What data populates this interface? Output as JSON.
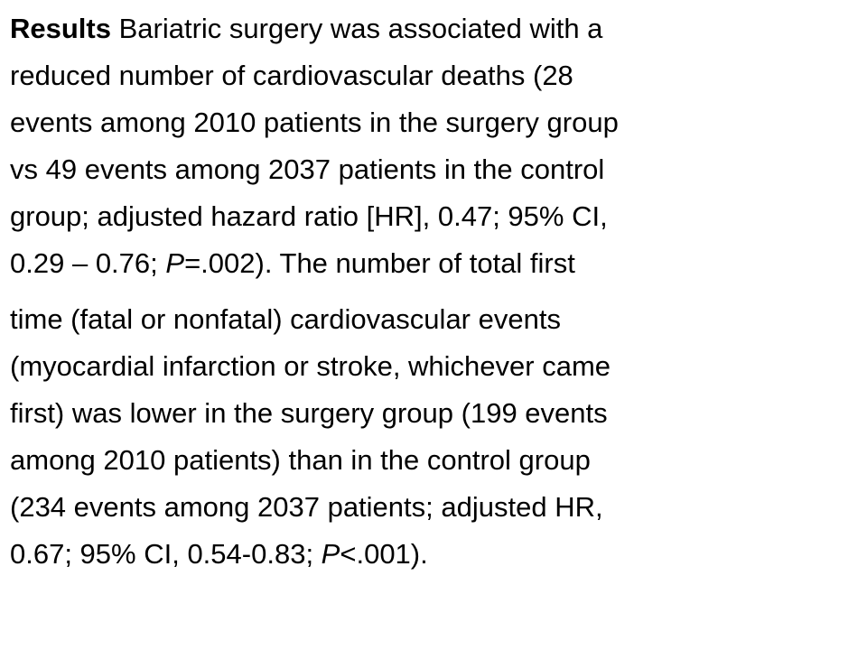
{
  "results": {
    "label": "Results",
    "lines": [
      [
        " Bariatric surgery was associated with a"
      ],
      [
        "reduced number of cardiovascular deaths (28"
      ],
      [
        "events among 2010 patients in the surgery group"
      ],
      [
        "vs 49 events among 2037 patients in the control"
      ],
      [
        "group; adjusted hazard ratio [HR], 0.47; 95% CI,"
      ],
      [
        "0.29 ",
        "–",
        " 0.76; ",
        "P",
        "=.002). The number of total first"
      ],
      [
        "time (fatal or nonfatal) cardiovascular events"
      ],
      [
        "(myocardial infarction or stroke, whichever came"
      ],
      [
        "first) was lower in the surgery group (199 events"
      ],
      [
        "among 2010 patients) than in the control group"
      ],
      [
        "(234 events among 2037 patients; adjusted HR,"
      ],
      [
        "0.67; 95% CI, 0.54-0.83; ",
        "P",
        "<.001)."
      ]
    ]
  }
}
